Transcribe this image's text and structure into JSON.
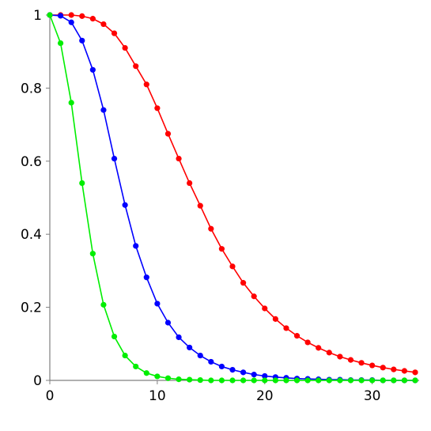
{
  "chart_data": {
    "type": "line",
    "title": "",
    "xlabel": "",
    "ylabel": "",
    "xlim": [
      0,
      34
    ],
    "ylim": [
      0,
      1
    ],
    "grid": false,
    "x_ticks": [
      "0",
      "10",
      "20",
      "30"
    ],
    "y_ticks": [
      "0",
      "0.2",
      "0.4",
      "0.6",
      "0.8",
      "1"
    ],
    "x": [
      0,
      1,
      2,
      3,
      4,
      5,
      6,
      7,
      8,
      9,
      10,
      11,
      12,
      13,
      14,
      15,
      16,
      17,
      18,
      19,
      20,
      21,
      22,
      23,
      24,
      25,
      26,
      27,
      28,
      29,
      30,
      31,
      32,
      33,
      34
    ],
    "series": [
      {
        "color": "#ff0000",
        "values": [
          1.0,
          1.0,
          1.0,
          0.997,
          0.99,
          0.975,
          0.95,
          0.91,
          0.86,
          0.81,
          0.745,
          0.675,
          0.607,
          0.54,
          0.478,
          0.415,
          0.36,
          0.312,
          0.267,
          0.23,
          0.197,
          0.168,
          0.143,
          0.122,
          0.104,
          0.089,
          0.076,
          0.065,
          0.056,
          0.048,
          0.041,
          0.035,
          0.03,
          0.026,
          0.022
        ]
      },
      {
        "color": "#0000ff",
        "values": [
          1.0,
          0.998,
          0.98,
          0.93,
          0.85,
          0.74,
          0.607,
          0.48,
          0.368,
          0.282,
          0.21,
          0.158,
          0.118,
          0.09,
          0.068,
          0.051,
          0.038,
          0.029,
          0.022,
          0.016,
          0.012,
          0.009,
          0.007,
          0.005,
          0.004,
          0.003,
          0.002,
          0.002,
          0.001,
          0.001,
          0.001,
          0.0,
          0.0,
          0.0,
          0.0
        ]
      },
      {
        "color": "#00ee00",
        "values": [
          1.0,
          0.923,
          0.76,
          0.54,
          0.347,
          0.207,
          0.12,
          0.068,
          0.038,
          0.02,
          0.011,
          0.006,
          0.003,
          0.002,
          0.001,
          0.0,
          0.0,
          0.0,
          0.0,
          0.0,
          0.0,
          0.0,
          0.0,
          0.0,
          0.0,
          0.0,
          0.0,
          0.0,
          0.0,
          0.0,
          0.0,
          0.0,
          0.0,
          0.0,
          0.0
        ]
      }
    ]
  }
}
